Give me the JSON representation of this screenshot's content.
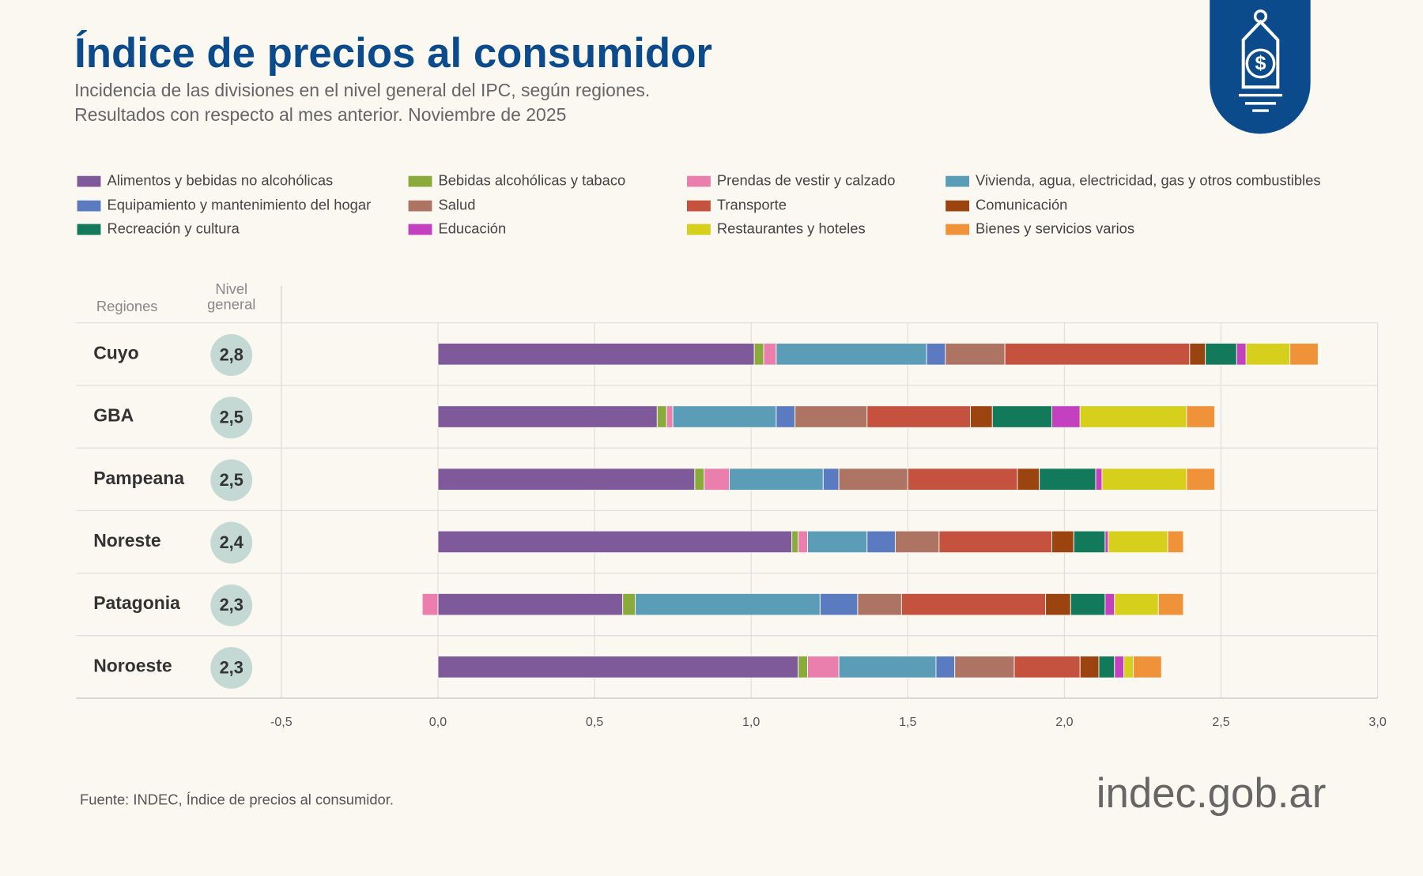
{
  "chart_data": {
    "type": "stacked-bar-horizontal",
    "title": "Índice de precios al consumidor",
    "subtitle": [
      "Incidencia de las divisiones en el nivel general del IPC, según regiones.",
      "Resultados con respecto al mes anterior. Noviembre de 2025"
    ],
    "row_header": "Regiones",
    "level_header": "Nivel general",
    "categories": [
      "Cuyo",
      "GBA",
      "Pampeana",
      "Noreste",
      "Patagonia",
      "Noroeste"
    ],
    "general_level": [
      "2,8",
      "2,5",
      "2,5",
      "2,4",
      "2,3",
      "2,3"
    ],
    "series": [
      {
        "name": "Alimentos y bebidas no alcohólicas",
        "color": "#7e5a9b",
        "values": [
          1.01,
          0.7,
          0.82,
          1.13,
          0.59,
          1.15
        ]
      },
      {
        "name": "Bebidas alcohólicas y tabaco",
        "color": "#8aaa3c",
        "values": [
          0.03,
          0.03,
          0.03,
          0.02,
          0.04,
          0.03
        ]
      },
      {
        "name": "Prendas de vestir y calzado",
        "color": "#ea7fae",
        "values": [
          0.04,
          0.02,
          0.08,
          0.03,
          -0.05,
          0.1
        ]
      },
      {
        "name": "Vivienda, agua, electricidad, gas y otros combustibles",
        "color": "#5b9db6",
        "values": [
          0.48,
          0.33,
          0.3,
          0.19,
          0.59,
          0.31
        ]
      },
      {
        "name": "Equipamiento y mantenimiento del hogar",
        "color": "#5a7bbf",
        "values": [
          0.06,
          0.06,
          0.05,
          0.09,
          0.12,
          0.06
        ]
      },
      {
        "name": "Salud",
        "color": "#ad7463",
        "values": [
          0.19,
          0.23,
          0.22,
          0.14,
          0.14,
          0.19
        ]
      },
      {
        "name": "Transporte",
        "color": "#c4523e",
        "values": [
          0.59,
          0.33,
          0.35,
          0.36,
          0.46,
          0.21
        ]
      },
      {
        "name": "Comunicación",
        "color": "#9b4410",
        "values": [
          0.05,
          0.07,
          0.07,
          0.07,
          0.08,
          0.06
        ]
      },
      {
        "name": "Recreación y cultura",
        "color": "#127a5a",
        "values": [
          0.1,
          0.19,
          0.18,
          0.1,
          0.11,
          0.05
        ]
      },
      {
        "name": "Educación",
        "color": "#c340c0",
        "values": [
          0.03,
          0.09,
          0.02,
          0.01,
          0.03,
          0.03
        ]
      },
      {
        "name": "Restaurantes y hoteles",
        "color": "#d6cf1c",
        "values": [
          0.14,
          0.34,
          0.27,
          0.19,
          0.14,
          0.03
        ]
      },
      {
        "name": "Bienes y servicios varios",
        "color": "#f0923a",
        "values": [
          0.09,
          0.09,
          0.09,
          0.05,
          0.08,
          0.09
        ]
      }
    ],
    "xlim": [
      -0.5,
      3.0
    ],
    "xticks": [
      {
        "value": -0.5,
        "label": "-0,5"
      },
      {
        "value": 0,
        "label": "0,0"
      },
      {
        "value": 0.5,
        "label": "0,5"
      },
      {
        "value": 1,
        "label": "1,0"
      },
      {
        "value": 1.5,
        "label": "1,5"
      },
      {
        "value": 2,
        "label": "2,0"
      },
      {
        "value": 2.5,
        "label": "2,5"
      },
      {
        "value": 3,
        "label": "3,0"
      }
    ],
    "grid": true,
    "source": "Fuente: INDEC, Índice de precios al consumidor.",
    "brand": "indec.gob.ar"
  }
}
